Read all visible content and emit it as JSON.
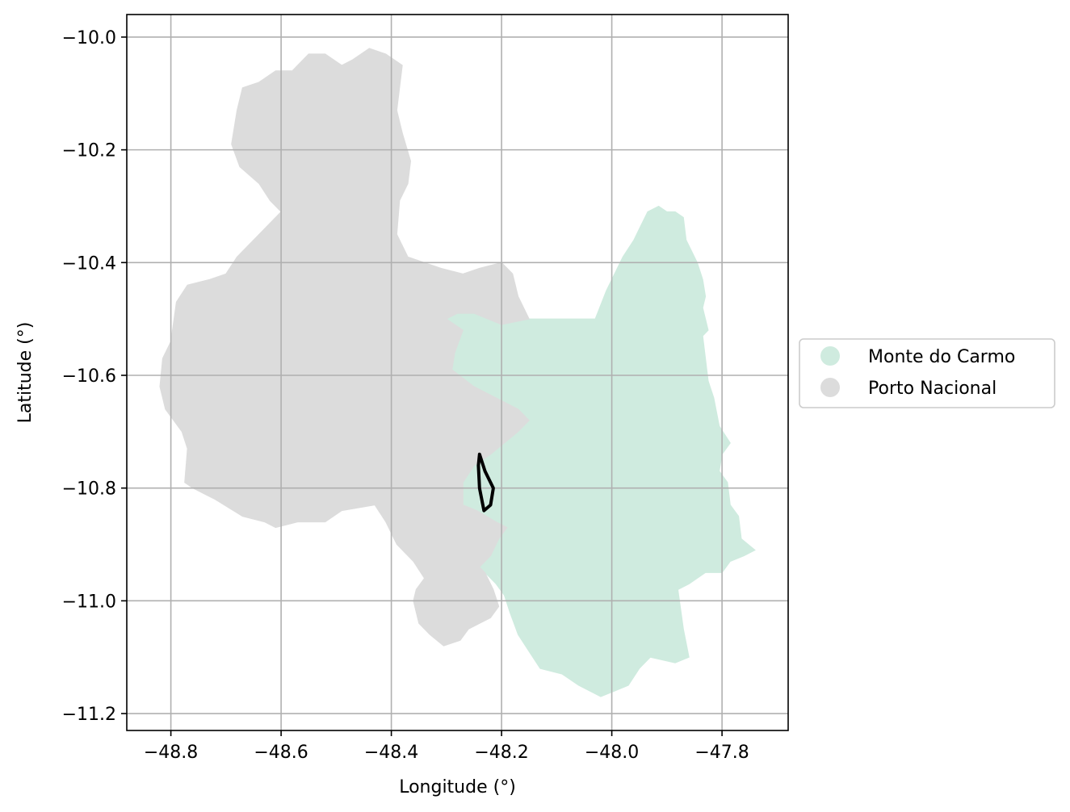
{
  "chart_data": {
    "type": "map",
    "xlabel": "Longitude (°)",
    "ylabel": "Latitude (°)",
    "xlim": [
      -48.88,
      -47.68
    ],
    "ylim": [
      -11.23,
      -9.96
    ],
    "grid": true,
    "legend_placement": "center-right outside",
    "x_ticks": [
      {
        "value": -48.8,
        "label": "−48.8"
      },
      {
        "value": -48.6,
        "label": "−48.6"
      },
      {
        "value": -48.4,
        "label": "−48.4"
      },
      {
        "value": -48.2,
        "label": "−48.2"
      },
      {
        "value": -48.0,
        "label": "−48.0"
      },
      {
        "value": -47.8,
        "label": "−47.8"
      }
    ],
    "y_ticks": [
      {
        "value": -10.0,
        "label": "−10.0"
      },
      {
        "value": -10.2,
        "label": "−10.2"
      },
      {
        "value": -10.4,
        "label": "−10.4"
      },
      {
        "value": -10.6,
        "label": "−10.6"
      },
      {
        "value": -10.8,
        "label": "−10.8"
      },
      {
        "value": -11.0,
        "label": "−11.0"
      },
      {
        "value": -11.2,
        "label": "−11.2"
      }
    ],
    "regions": [
      {
        "name": "Monte do Carmo",
        "color": "#cfebdf",
        "boundary": [
          [
            -48.15,
            -10.5
          ],
          [
            -48.07,
            -10.5
          ],
          [
            -48.03,
            -10.5
          ],
          [
            -48.01,
            -10.45
          ],
          [
            -47.995,
            -10.42
          ],
          [
            -47.98,
            -10.39
          ],
          [
            -47.96,
            -10.36
          ],
          [
            -47.95,
            -10.34
          ],
          [
            -47.935,
            -10.31
          ],
          [
            -47.915,
            -10.3
          ],
          [
            -47.9,
            -10.31
          ],
          [
            -47.885,
            -10.31
          ],
          [
            -47.87,
            -10.32
          ],
          [
            -47.865,
            -10.36
          ],
          [
            -47.855,
            -10.38
          ],
          [
            -47.845,
            -10.4
          ],
          [
            -47.835,
            -10.43
          ],
          [
            -47.83,
            -10.46
          ],
          [
            -47.835,
            -10.48
          ],
          [
            -47.825,
            -10.52
          ],
          [
            -47.835,
            -10.53
          ],
          [
            -47.83,
            -10.57
          ],
          [
            -47.825,
            -10.61
          ],
          [
            -47.815,
            -10.64
          ],
          [
            -47.805,
            -10.69
          ],
          [
            -47.785,
            -10.72
          ],
          [
            -47.8,
            -10.74
          ],
          [
            -47.805,
            -10.77
          ],
          [
            -47.79,
            -10.79
          ],
          [
            -47.785,
            -10.83
          ],
          [
            -47.77,
            -10.85
          ],
          [
            -47.765,
            -10.89
          ],
          [
            -47.74,
            -10.91
          ],
          [
            -47.76,
            -10.92
          ],
          [
            -47.785,
            -10.93
          ],
          [
            -47.8,
            -10.95
          ],
          [
            -47.83,
            -10.95
          ],
          [
            -47.86,
            -10.97
          ],
          [
            -47.88,
            -10.98
          ],
          [
            -47.87,
            -11.05
          ],
          [
            -47.86,
            -11.1
          ],
          [
            -47.885,
            -11.11
          ],
          [
            -47.93,
            -11.1
          ],
          [
            -47.95,
            -11.12
          ],
          [
            -47.97,
            -11.15
          ],
          [
            -47.995,
            -11.16
          ],
          [
            -48.02,
            -11.17
          ],
          [
            -48.06,
            -11.15
          ],
          [
            -48.09,
            -11.13
          ],
          [
            -48.13,
            -11.12
          ],
          [
            -48.15,
            -11.09
          ],
          [
            -48.17,
            -11.06
          ],
          [
            -48.185,
            -11.02
          ],
          [
            -48.195,
            -10.99
          ],
          [
            -48.21,
            -10.97
          ],
          [
            -48.24,
            -10.94
          ],
          [
            -48.22,
            -10.92
          ],
          [
            -48.205,
            -10.89
          ],
          [
            -48.19,
            -10.87
          ],
          [
            -48.21,
            -10.86
          ],
          [
            -48.245,
            -10.84
          ],
          [
            -48.27,
            -10.83
          ],
          [
            -48.27,
            -10.79
          ],
          [
            -48.25,
            -10.76
          ],
          [
            -48.22,
            -10.74
          ],
          [
            -48.17,
            -10.7
          ],
          [
            -48.15,
            -10.68
          ],
          [
            -48.17,
            -10.66
          ],
          [
            -48.21,
            -10.64
          ],
          [
            -48.25,
            -10.62
          ],
          [
            -48.29,
            -10.59
          ],
          [
            -48.285,
            -10.56
          ],
          [
            -48.27,
            -10.52
          ],
          [
            -48.3,
            -10.5
          ],
          [
            -48.28,
            -10.49
          ],
          [
            -48.25,
            -10.49
          ],
          [
            -48.2,
            -10.51
          ]
        ]
      },
      {
        "name": "Porto Nacional",
        "color": "#dcdcdc",
        "boundary": [
          [
            -48.38,
            -10.05
          ],
          [
            -48.41,
            -10.03
          ],
          [
            -48.44,
            -10.02
          ],
          [
            -48.47,
            -10.04
          ],
          [
            -48.49,
            -10.05
          ],
          [
            -48.52,
            -10.03
          ],
          [
            -48.55,
            -10.03
          ],
          [
            -48.58,
            -10.06
          ],
          [
            -48.61,
            -10.06
          ],
          [
            -48.64,
            -10.08
          ],
          [
            -48.67,
            -10.09
          ],
          [
            -48.68,
            -10.13
          ],
          [
            -48.69,
            -10.19
          ],
          [
            -48.675,
            -10.23
          ],
          [
            -48.64,
            -10.26
          ],
          [
            -48.62,
            -10.29
          ],
          [
            -48.6,
            -10.31
          ],
          [
            -48.64,
            -10.35
          ],
          [
            -48.68,
            -10.39
          ],
          [
            -48.7,
            -10.42
          ],
          [
            -48.73,
            -10.43
          ],
          [
            -48.77,
            -10.44
          ],
          [
            -48.79,
            -10.47
          ],
          [
            -48.8,
            -10.54
          ],
          [
            -48.815,
            -10.57
          ],
          [
            -48.82,
            -10.62
          ],
          [
            -48.81,
            -10.66
          ],
          [
            -48.78,
            -10.7
          ],
          [
            -48.77,
            -10.73
          ],
          [
            -48.775,
            -10.79
          ],
          [
            -48.76,
            -10.8
          ],
          [
            -48.72,
            -10.82
          ],
          [
            -48.67,
            -10.85
          ],
          [
            -48.63,
            -10.86
          ],
          [
            -48.61,
            -10.87
          ],
          [
            -48.57,
            -10.86
          ],
          [
            -48.52,
            -10.86
          ],
          [
            -48.49,
            -10.84
          ],
          [
            -48.43,
            -10.83
          ],
          [
            -48.41,
            -10.86
          ],
          [
            -48.39,
            -10.9
          ],
          [
            -48.36,
            -10.93
          ],
          [
            -48.34,
            -10.96
          ],
          [
            -48.355,
            -10.98
          ],
          [
            -48.36,
            -11.0
          ],
          [
            -48.35,
            -11.04
          ],
          [
            -48.33,
            -11.06
          ],
          [
            -48.305,
            -11.08
          ],
          [
            -48.275,
            -11.07
          ],
          [
            -48.26,
            -11.05
          ],
          [
            -48.22,
            -11.03
          ],
          [
            -48.205,
            -11.01
          ],
          [
            -48.215,
            -10.98
          ],
          [
            -48.23,
            -10.95
          ],
          [
            -48.24,
            -10.94
          ],
          [
            -48.22,
            -10.92
          ],
          [
            -48.205,
            -10.89
          ],
          [
            -48.19,
            -10.87
          ],
          [
            -48.21,
            -10.86
          ],
          [
            -48.245,
            -10.84
          ],
          [
            -48.27,
            -10.83
          ],
          [
            -48.27,
            -10.79
          ],
          [
            -48.25,
            -10.76
          ],
          [
            -48.22,
            -10.74
          ],
          [
            -48.17,
            -10.7
          ],
          [
            -48.15,
            -10.68
          ],
          [
            -48.17,
            -10.66
          ],
          [
            -48.21,
            -10.64
          ],
          [
            -48.25,
            -10.62
          ],
          [
            -48.29,
            -10.59
          ],
          [
            -48.285,
            -10.56
          ],
          [
            -48.27,
            -10.52
          ],
          [
            -48.3,
            -10.5
          ],
          [
            -48.28,
            -10.49
          ],
          [
            -48.25,
            -10.49
          ],
          [
            -48.2,
            -10.51
          ],
          [
            -48.15,
            -10.5
          ],
          [
            -48.17,
            -10.46
          ],
          [
            -48.18,
            -10.42
          ],
          [
            -48.2,
            -10.4
          ],
          [
            -48.24,
            -10.41
          ],
          [
            -48.27,
            -10.42
          ],
          [
            -48.31,
            -10.41
          ],
          [
            -48.34,
            -10.4
          ],
          [
            -48.37,
            -10.39
          ],
          [
            -48.39,
            -10.35
          ],
          [
            -48.385,
            -10.29
          ],
          [
            -48.37,
            -10.26
          ],
          [
            -48.365,
            -10.22
          ],
          [
            -48.38,
            -10.17
          ],
          [
            -48.39,
            -10.13
          ],
          [
            -48.385,
            -10.09
          ]
        ]
      }
    ],
    "outline": {
      "color": "#000000",
      "points": [
        [
          -48.24,
          -10.74
        ],
        [
          -48.23,
          -10.77
        ],
        [
          -48.215,
          -10.8
        ],
        [
          -48.22,
          -10.83
        ],
        [
          -48.232,
          -10.84
        ],
        [
          -48.24,
          -10.8
        ],
        [
          -48.242,
          -10.76
        ],
        [
          -48.24,
          -10.74
        ]
      ]
    },
    "legend": [
      {
        "label": "Monte do Carmo",
        "color": "#cfebdf"
      },
      {
        "label": "Porto Nacional",
        "color": "#dcdcdc"
      }
    ]
  }
}
